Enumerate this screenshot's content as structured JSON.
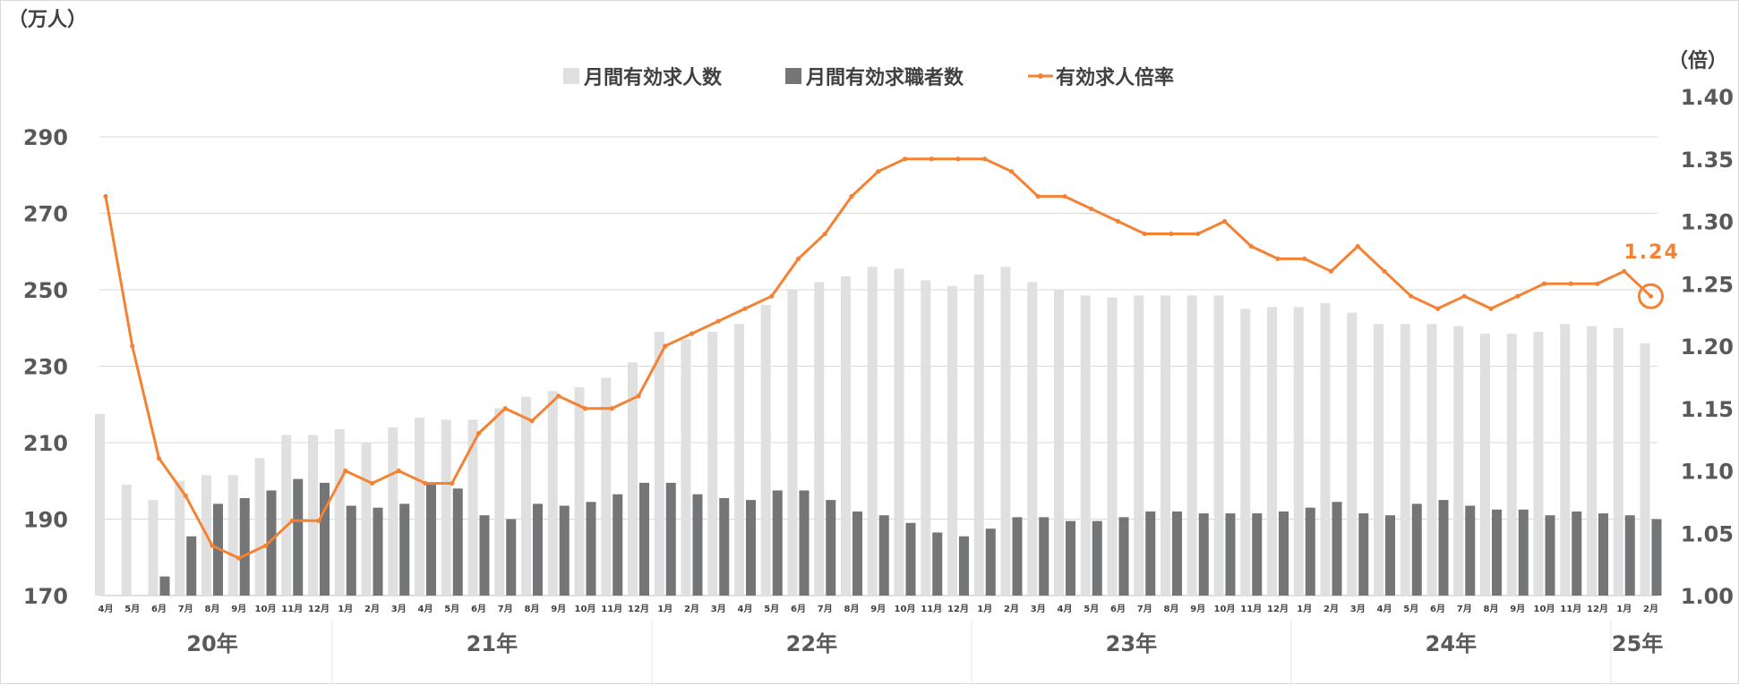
{
  "chart_data": {
    "type": "bar",
    "left_unit": "（万人）",
    "right_unit": "（倍）",
    "legend": [
      {
        "label": "月間有効求人数",
        "color": "#e0e0e0",
        "kind": "bar"
      },
      {
        "label": "月間有効求職者数",
        "color": "#737576",
        "kind": "bar"
      },
      {
        "label": "有効求人倍率",
        "color": "#f58233",
        "kind": "line"
      }
    ],
    "y_left": {
      "range": [
        170,
        290
      ],
      "ticks": [
        "170",
        "190",
        "210",
        "230",
        "250",
        "270",
        "290"
      ]
    },
    "y_right": {
      "range": [
        1.0,
        1.4
      ],
      "ticks": [
        "1.00",
        "1.05",
        "1.10",
        "1.15",
        "1.20",
        "1.25",
        "1.30",
        "1.35",
        "1.40"
      ]
    },
    "grid": true,
    "months": [
      "4月",
      "5月",
      "6月",
      "7月",
      "8月",
      "9月",
      "10月",
      "11月",
      "12月",
      "1月",
      "2月",
      "3月",
      "4月",
      "5月",
      "6月",
      "7月",
      "8月",
      "9月",
      "10月",
      "11月",
      "12月",
      "1月",
      "2月",
      "3月",
      "4月",
      "5月",
      "6月",
      "7月",
      "8月",
      "9月",
      "10月",
      "11月",
      "12月",
      "1月",
      "2月",
      "3月",
      "4月",
      "5月",
      "6月",
      "7月",
      "8月",
      "9月",
      "10月",
      "11月",
      "12月",
      "1月",
      "2月",
      "3月",
      "4月",
      "5月",
      "6月",
      "7月",
      "8月",
      "9月",
      "10月",
      "11月",
      "12月",
      "1月",
      "2月"
    ],
    "years": [
      {
        "label": "20年",
        "months": 9
      },
      {
        "label": "21年",
        "months": 12
      },
      {
        "label": "22年",
        "months": 12
      },
      {
        "label": "23年",
        "months": 12
      },
      {
        "label": "24年",
        "months": 12
      },
      {
        "label": "25年",
        "months": 2
      }
    ],
    "series": [
      {
        "name": "月間有効求人数",
        "type": "bar",
        "color": "#e0e0e0",
        "values": [
          217.5,
          199,
          195,
          200,
          201.5,
          201.5,
          206,
          212,
          212,
          213.5,
          210,
          214,
          216.5,
          216,
          216,
          219,
          222,
          223.5,
          224.5,
          227,
          231,
          239,
          237,
          239,
          241,
          246,
          250,
          252,
          253.5,
          256,
          255.5,
          252.5,
          251,
          254,
          256,
          252,
          250,
          248.5,
          248,
          248.5,
          248.5,
          248.5,
          248.5,
          245,
          245.5,
          245.5,
          246.5,
          244,
          241,
          241,
          241,
          240.5,
          238.5,
          238.5,
          239,
          241,
          240.5,
          240,
          236
        ]
      },
      {
        "name": "月間有効求職者数",
        "type": "bar",
        "color": "#737576",
        "values": [
          168,
          168,
          175,
          185.5,
          194,
          195.5,
          197.5,
          200.5,
          199.5,
          193.5,
          193,
          194,
          199,
          198,
          191,
          190,
          194,
          193.5,
          194.5,
          196.5,
          199.5,
          199.5,
          196.5,
          195.5,
          195,
          197.5,
          197.5,
          195,
          192,
          191,
          189,
          186.5,
          185.5,
          187.5,
          190.5,
          190.5,
          189.5,
          189.5,
          190.5,
          192,
          192,
          191.5,
          191.5,
          191.5,
          192,
          193,
          194.5,
          191.5,
          191,
          194,
          195,
          193.5,
          192.5,
          192.5,
          191,
          192,
          191.5,
          191,
          190
        ]
      },
      {
        "name": "有効求人倍率",
        "type": "line",
        "color": "#f58233",
        "axis": "right",
        "values": [
          1.32,
          1.2,
          1.11,
          1.08,
          1.04,
          1.03,
          1.04,
          1.06,
          1.06,
          1.1,
          1.09,
          1.1,
          1.09,
          1.09,
          1.13,
          1.15,
          1.14,
          1.16,
          1.15,
          1.15,
          1.16,
          1.2,
          1.21,
          1.22,
          1.23,
          1.24,
          1.27,
          1.29,
          1.32,
          1.34,
          1.35,
          1.35,
          1.35,
          1.35,
          1.34,
          1.32,
          1.32,
          1.31,
          1.3,
          1.29,
          1.29,
          1.29,
          1.3,
          1.28,
          1.27,
          1.27,
          1.26,
          1.28,
          1.26,
          1.24,
          1.23,
          1.24,
          1.23,
          1.24,
          1.25,
          1.25,
          1.25,
          1.26,
          1.24
        ]
      }
    ],
    "annotation": {
      "label": "1.24",
      "index": 58
    }
  }
}
